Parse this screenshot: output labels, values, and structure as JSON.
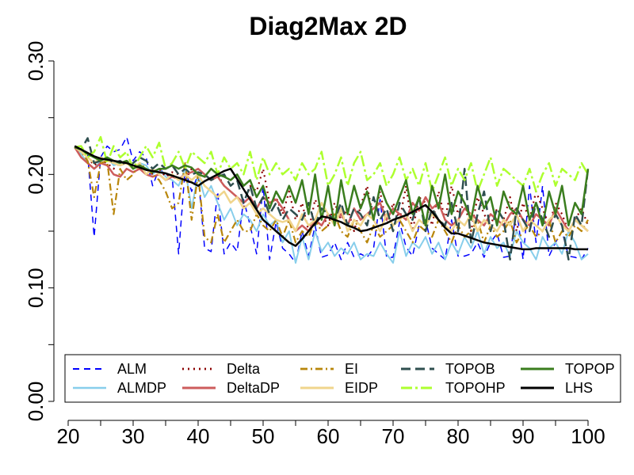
{
  "chart_data": {
    "type": "line",
    "title": "Diag2Max 2D",
    "xlabel": "",
    "ylabel": "",
    "xlim": [
      20,
      100
    ],
    "ylim": [
      0.0,
      0.3
    ],
    "x_ticks": [
      20,
      30,
      40,
      50,
      60,
      70,
      80,
      90,
      100
    ],
    "x_tick_labels": [
      "20",
      "30",
      "40",
      "50",
      "60",
      "70",
      "80",
      "90",
      "100"
    ],
    "y_ticks": [
      0.0,
      0.1,
      0.2,
      0.3
    ],
    "y_tick_labels": [
      "0.00",
      "0.10",
      "0.20",
      "0.30"
    ],
    "grid": false,
    "legend_position": "bottom",
    "x": [
      21,
      22,
      23,
      24,
      25,
      26,
      27,
      28,
      29,
      30,
      31,
      32,
      33,
      34,
      35,
      36,
      37,
      38,
      39,
      40,
      41,
      42,
      43,
      44,
      45,
      46,
      47,
      48,
      49,
      50,
      51,
      52,
      53,
      54,
      55,
      56,
      57,
      58,
      59,
      60,
      61,
      62,
      63,
      64,
      65,
      66,
      67,
      68,
      69,
      70,
      71,
      72,
      73,
      74,
      75,
      76,
      77,
      78,
      79,
      80,
      81,
      82,
      83,
      84,
      85,
      86,
      87,
      88,
      89,
      90,
      91,
      92,
      93,
      94,
      95,
      96,
      97,
      98,
      99,
      100
    ],
    "series": [
      {
        "name": "ALM",
        "color": "#0000ff",
        "dash": "8,6",
        "width": 1.5,
        "values": [
          0.224,
          0.222,
          0.218,
          0.145,
          0.215,
          0.225,
          0.22,
          0.222,
          0.233,
          0.212,
          0.22,
          0.215,
          0.19,
          0.205,
          0.2,
          0.198,
          0.13,
          0.205,
          0.185,
          0.2,
          0.135,
          0.132,
          0.185,
          0.13,
          0.14,
          0.132,
          0.178,
          0.155,
          0.13,
          0.19,
          0.125,
          0.158,
          0.135,
          0.13,
          0.122,
          0.15,
          0.128,
          0.155,
          0.127,
          0.129,
          0.14,
          0.125,
          0.14,
          0.127,
          0.13,
          0.127,
          0.135,
          0.178,
          0.127,
          0.127,
          0.158,
          0.136,
          0.128,
          0.155,
          0.16,
          0.135,
          0.13,
          0.125,
          0.16,
          0.128,
          0.128,
          0.13,
          0.14,
          0.127,
          0.14,
          0.148,
          0.127,
          0.128,
          0.17,
          0.125,
          0.19,
          0.14,
          0.19,
          0.128,
          0.14,
          0.15,
          0.128,
          0.127,
          0.125,
          0.135
        ]
      },
      {
        "name": "ALMDP",
        "color": "#87ceeb",
        "dash": "",
        "width": 2,
        "values": [
          0.224,
          0.218,
          0.21,
          0.205,
          0.212,
          0.215,
          0.208,
          0.21,
          0.212,
          0.205,
          0.21,
          0.208,
          0.2,
          0.205,
          0.198,
          0.195,
          0.19,
          0.205,
          0.17,
          0.2,
          0.18,
          0.19,
          0.175,
          0.16,
          0.17,
          0.155,
          0.165,
          0.16,
          0.15,
          0.165,
          0.155,
          0.16,
          0.14,
          0.15,
          0.122,
          0.145,
          0.125,
          0.15,
          0.132,
          0.14,
          0.128,
          0.135,
          0.13,
          0.14,
          0.125,
          0.13,
          0.128,
          0.14,
          0.13,
          0.122,
          0.15,
          0.128,
          0.14,
          0.135,
          0.145,
          0.13,
          0.14,
          0.125,
          0.14,
          0.13,
          0.145,
          0.135,
          0.15,
          0.13,
          0.145,
          0.135,
          0.14,
          0.128,
          0.15,
          0.14,
          0.135,
          0.125,
          0.145,
          0.135,
          0.14,
          0.13,
          0.15,
          0.14,
          0.125,
          0.13
        ]
      },
      {
        "name": "Delta",
        "color": "#8b0000",
        "dash": "2,5",
        "width": 2.2,
        "values": [
          0.224,
          0.22,
          0.215,
          0.208,
          0.212,
          0.21,
          0.205,
          0.21,
          0.212,
          0.208,
          0.206,
          0.205,
          0.2,
          0.205,
          0.198,
          0.202,
          0.2,
          0.195,
          0.205,
          0.2,
          0.198,
          0.195,
          0.2,
          0.19,
          0.185,
          0.18,
          0.17,
          0.19,
          0.185,
          0.205,
          0.175,
          0.18,
          0.165,
          0.185,
          0.16,
          0.175,
          0.15,
          0.178,
          0.165,
          0.155,
          0.175,
          0.16,
          0.17,
          0.15,
          0.172,
          0.19,
          0.16,
          0.185,
          0.155,
          0.175,
          0.16,
          0.19,
          0.15,
          0.18,
          0.175,
          0.155,
          0.185,
          0.16,
          0.19,
          0.165,
          0.175,
          0.15,
          0.18,
          0.165,
          0.155,
          0.17,
          0.16,
          0.18,
          0.15,
          0.175,
          0.16,
          0.185,
          0.17,
          0.155,
          0.175,
          0.165,
          0.15,
          0.16,
          0.17,
          0.155
        ]
      },
      {
        "name": "DeltaDP",
        "color": "#cd5c5c",
        "dash": "",
        "width": 2.5,
        "values": [
          0.224,
          0.215,
          0.21,
          0.205,
          0.21,
          0.208,
          0.2,
          0.198,
          0.205,
          0.202,
          0.205,
          0.2,
          0.198,
          0.2,
          0.195,
          0.198,
          0.196,
          0.2,
          0.202,
          0.205,
          0.2,
          0.195,
          0.198,
          0.19,
          0.185,
          0.18,
          0.175,
          0.18,
          0.17,
          0.18,
          0.175,
          0.178,
          0.17,
          0.16,
          0.15,
          0.155,
          0.15,
          0.16,
          0.155,
          0.165,
          0.16,
          0.165,
          0.155,
          0.17,
          0.16,
          0.165,
          0.17,
          0.175,
          0.16,
          0.17,
          0.165,
          0.16,
          0.175,
          0.168,
          0.18,
          0.17,
          0.175,
          0.16,
          0.155,
          0.16,
          0.17,
          0.165,
          0.16,
          0.155,
          0.165,
          0.16,
          0.155,
          0.165,
          0.17,
          0.16,
          0.155,
          0.165,
          0.16,
          0.155,
          0.17,
          0.16,
          0.15,
          0.16,
          0.155,
          0.15
        ]
      },
      {
        "name": "EI",
        "color": "#b8860b",
        "dash": "9,4,2,4",
        "width": 2.2,
        "values": [
          0.224,
          0.22,
          0.212,
          0.18,
          0.21,
          0.212,
          0.165,
          0.205,
          0.195,
          0.2,
          0.21,
          0.205,
          0.2,
          0.195,
          0.185,
          0.17,
          0.175,
          0.21,
          0.16,
          0.2,
          0.145,
          0.14,
          0.165,
          0.14,
          0.15,
          0.16,
          0.15,
          0.15,
          0.165,
          0.155,
          0.15,
          0.16,
          0.145,
          0.16,
          0.14,
          0.15,
          0.145,
          0.16,
          0.15,
          0.155,
          0.165,
          0.15,
          0.145,
          0.16,
          0.15,
          0.14,
          0.155,
          0.145,
          0.15,
          0.155,
          0.16,
          0.15,
          0.14,
          0.155,
          0.15,
          0.145,
          0.16,
          0.15,
          0.14,
          0.155,
          0.145,
          0.15,
          0.16,
          0.14,
          0.155,
          0.145,
          0.15,
          0.16,
          0.14,
          0.15,
          0.155,
          0.145,
          0.15,
          0.16,
          0.14,
          0.15,
          0.145,
          0.155,
          0.15,
          0.16
        ]
      },
      {
        "name": "EIDP",
        "color": "#f0d58c",
        "dash": "",
        "width": 2.5,
        "values": [
          0.224,
          0.22,
          0.215,
          0.21,
          0.215,
          0.212,
          0.21,
          0.208,
          0.21,
          0.205,
          0.21,
          0.2,
          0.205,
          0.2,
          0.195,
          0.2,
          0.195,
          0.2,
          0.195,
          0.2,
          0.19,
          0.185,
          0.18,
          0.185,
          0.175,
          0.18,
          0.17,
          0.175,
          0.165,
          0.17,
          0.165,
          0.16,
          0.158,
          0.16,
          0.15,
          0.165,
          0.155,
          0.16,
          0.175,
          0.165,
          0.155,
          0.17,
          0.15,
          0.16,
          0.155,
          0.165,
          0.16,
          0.15,
          0.165,
          0.155,
          0.16,
          0.165,
          0.15,
          0.16,
          0.155,
          0.165,
          0.16,
          0.155,
          0.15,
          0.16,
          0.155,
          0.165,
          0.15,
          0.16,
          0.155,
          0.15,
          0.16,
          0.155,
          0.165,
          0.15,
          0.16,
          0.155,
          0.15,
          0.16,
          0.165,
          0.155,
          0.15,
          0.16,
          0.155,
          0.15
        ]
      },
      {
        "name": "TOPOB",
        "color": "#2f4f4f",
        "dash": "12,6",
        "width": 2.5,
        "values": [
          0.224,
          0.222,
          0.232,
          0.21,
          0.212,
          0.215,
          0.21,
          0.212,
          0.208,
          0.21,
          0.215,
          0.212,
          0.205,
          0.21,
          0.205,
          0.208,
          0.2,
          0.205,
          0.2,
          0.202,
          0.2,
          0.195,
          0.198,
          0.2,
          0.19,
          0.195,
          0.175,
          0.19,
          0.17,
          0.18,
          0.165,
          0.175,
          0.16,
          0.17,
          0.165,
          0.16,
          0.175,
          0.155,
          0.17,
          0.165,
          0.16,
          0.175,
          0.155,
          0.17,
          0.165,
          0.155,
          0.18,
          0.16,
          0.17,
          0.15,
          0.175,
          0.165,
          0.16,
          0.18,
          0.15,
          0.17,
          0.16,
          0.155,
          0.175,
          0.15,
          0.205,
          0.14,
          0.165,
          0.185,
          0.15,
          0.17,
          0.16,
          0.125,
          0.17,
          0.16,
          0.15,
          0.175,
          0.16,
          0.145,
          0.165,
          0.155,
          0.125,
          0.165,
          0.155,
          0.205
        ]
      },
      {
        "name": "TOPOHP",
        "color": "#adff2f",
        "dash": "14,4,3,4",
        "width": 2.5,
        "values": [
          0.224,
          0.225,
          0.215,
          0.22,
          0.233,
          0.21,
          0.225,
          0.215,
          0.22,
          0.205,
          0.215,
          0.225,
          0.215,
          0.228,
          0.205,
          0.21,
          0.22,
          0.205,
          0.22,
          0.215,
          0.21,
          0.22,
          0.2,
          0.215,
          0.205,
          0.21,
          0.2,
          0.22,
          0.195,
          0.215,
          0.2,
          0.21,
          0.2,
          0.205,
          0.195,
          0.21,
          0.2,
          0.205,
          0.22,
          0.19,
          0.2,
          0.215,
          0.19,
          0.21,
          0.22,
          0.195,
          0.2,
          0.21,
          0.19,
          0.2,
          0.215,
          0.195,
          0.205,
          0.19,
          0.21,
          0.185,
          0.2,
          0.215,
          0.19,
          0.205,
          0.195,
          0.21,
          0.185,
          0.2,
          0.215,
          0.19,
          0.205,
          0.2,
          0.195,
          0.19,
          0.205,
          0.185,
          0.2,
          0.21,
          0.19,
          0.205,
          0.2,
          0.195,
          0.21,
          0.2
        ]
      },
      {
        "name": "TOPOP",
        "color": "#3a7d1e",
        "dash": "",
        "width": 2.5,
        "values": [
          0.224,
          0.222,
          0.218,
          0.215,
          0.212,
          0.215,
          0.212,
          0.21,
          0.212,
          0.205,
          0.208,
          0.205,
          0.202,
          0.205,
          0.205,
          0.208,
          0.205,
          0.208,
          0.206,
          0.2,
          0.198,
          0.205,
          0.2,
          0.198,
          0.195,
          0.2,
          0.19,
          0.195,
          0.18,
          0.19,
          0.17,
          0.185,
          0.175,
          0.19,
          0.175,
          0.195,
          0.165,
          0.2,
          0.16,
          0.19,
          0.155,
          0.195,
          0.165,
          0.19,
          0.17,
          0.185,
          0.16,
          0.19,
          0.175,
          0.165,
          0.18,
          0.195,
          0.165,
          0.18,
          0.155,
          0.19,
          0.17,
          0.2,
          0.165,
          0.185,
          0.175,
          0.16,
          0.19,
          0.17,
          0.18,
          0.155,
          0.185,
          0.17,
          0.165,
          0.19,
          0.16,
          0.175,
          0.155,
          0.185,
          0.165,
          0.19,
          0.155,
          0.175,
          0.165,
          0.205
        ]
      },
      {
        "name": "LHS",
        "color": "#000000",
        "dash": "",
        "width": 2.5,
        "values": [
          0.225,
          0.222,
          0.219,
          0.216,
          0.214,
          0.213,
          0.212,
          0.211,
          0.21,
          0.208,
          0.206,
          0.204,
          0.203,
          0.202,
          0.201,
          0.199,
          0.197,
          0.195,
          0.193,
          0.19,
          0.194,
          0.197,
          0.2,
          0.203,
          0.205,
          0.196,
          0.187,
          0.178,
          0.169,
          0.16,
          0.155,
          0.15,
          0.145,
          0.14,
          0.137,
          0.143,
          0.15,
          0.157,
          0.163,
          0.162,
          0.16,
          0.158,
          0.155,
          0.153,
          0.15,
          0.151,
          0.153,
          0.155,
          0.157,
          0.16,
          0.162,
          0.164,
          0.167,
          0.17,
          0.173,
          0.167,
          0.16,
          0.153,
          0.148,
          0.148,
          0.146,
          0.144,
          0.142,
          0.14,
          0.139,
          0.138,
          0.137,
          0.136,
          0.135,
          0.134,
          0.134,
          0.135,
          0.135,
          0.135,
          0.135,
          0.135,
          0.135,
          0.134,
          0.134,
          0.134
        ]
      }
    ]
  }
}
